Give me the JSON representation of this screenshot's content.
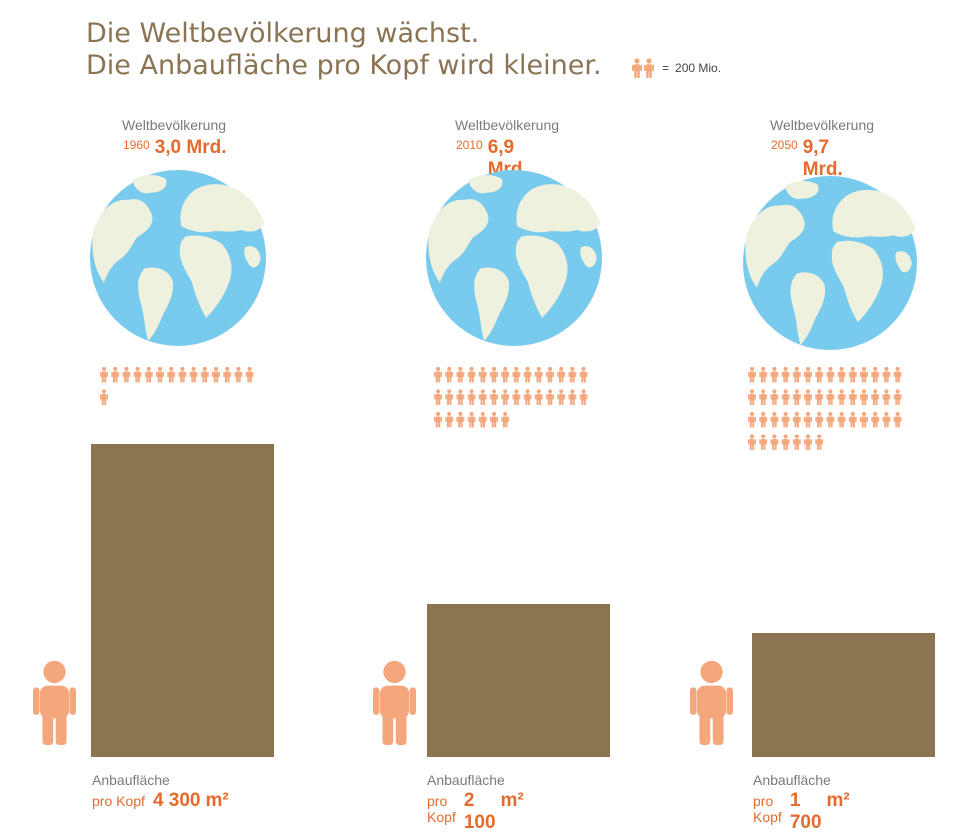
{
  "title": {
    "line1": "Die Weltbevölkerung wächst.",
    "line2": "Die Anbaufläche pro Kopf wird kleiner."
  },
  "legend": {
    "icon": "two-people-icon",
    "equals": "=",
    "text": "200 Mio."
  },
  "colors": {
    "accent": "#e46b2c",
    "bar": "#8b7450",
    "person": "#f4a77c",
    "ocean": "#79cbee",
    "land": "#eef1dd",
    "title": "#8b7453"
  },
  "chart_data": {
    "type": "bar",
    "categories": [
      "1960",
      "2010",
      "2050"
    ],
    "series": [
      {
        "name": "Anbaufläche pro Kopf",
        "unit": "m²",
        "values": [
          4300,
          2100,
          1700
        ]
      },
      {
        "name": "Weltbevölkerung",
        "unit": "Mrd.",
        "values": [
          3.0,
          6.9,
          9.7
        ]
      }
    ],
    "pictogram_unit_millions": 200,
    "pictogram_counts": [
      15,
      35,
      49
    ]
  },
  "columns": [
    {
      "pop_label": "Weltbevölkerung",
      "year": "1960",
      "pop_value": "3,0 Mrd.",
      "area_label": "Anbaufläche",
      "area_per": "pro Kopf",
      "area_value": "4 300",
      "area_unit": "m²"
    },
    {
      "pop_label": "Weltbevölkerung",
      "year": "2010",
      "pop_value": "6,9 Mrd.",
      "area_label": "Anbaufläche",
      "area_per": "pro Kopf",
      "area_value": "2 100",
      "area_unit": "m²"
    },
    {
      "pop_label": "Weltbevölkerung",
      "year": "2050",
      "pop_value": "9,7 Mrd.",
      "area_label": "Anbaufläche",
      "area_per": "pro Kopf",
      "area_value": "1 700",
      "area_unit": "m²"
    }
  ]
}
